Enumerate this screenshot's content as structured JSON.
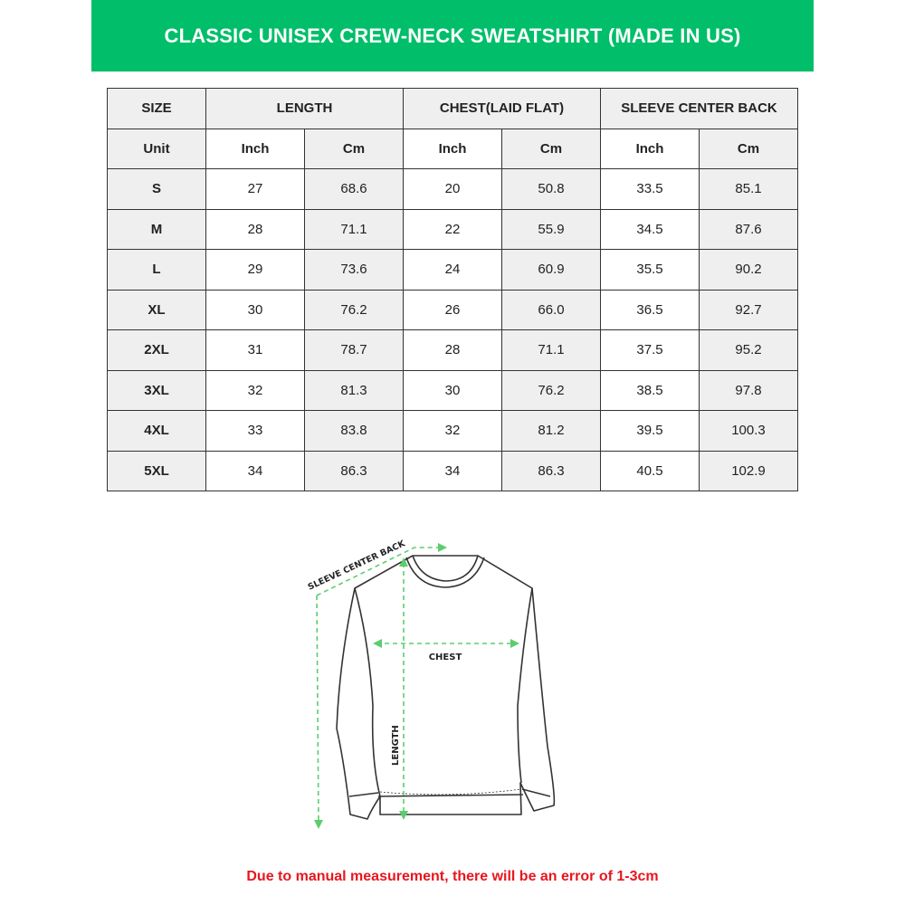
{
  "title": "CLASSIC UNISEX CREW-NECK SWEATSHIRT (MADE IN US)",
  "colors": {
    "banner": "#00be69",
    "note": "#e8161e",
    "arrows": "#5ccd6e"
  },
  "table": {
    "headers": [
      "SIZE",
      "LENGTH",
      "CHEST(LAID FLAT)",
      "SLEEVE CENTER BACK"
    ],
    "units": [
      "Unit",
      "Inch",
      "Cm",
      "Inch",
      "Cm",
      "Inch",
      "Cm"
    ],
    "rows": [
      [
        "S",
        "27",
        "68.6",
        "20",
        "50.8",
        "33.5",
        "85.1"
      ],
      [
        "M",
        "28",
        "71.1",
        "22",
        "55.9",
        "34.5",
        "87.6"
      ],
      [
        "L",
        "29",
        "73.6",
        "24",
        "60.9",
        "35.5",
        "90.2"
      ],
      [
        "XL",
        "30",
        "76.2",
        "26",
        "66.0",
        "36.5",
        "92.7"
      ],
      [
        "2XL",
        "31",
        "78.7",
        "28",
        "71.1",
        "37.5",
        "95.2"
      ],
      [
        "3XL",
        "32",
        "81.3",
        "30",
        "76.2",
        "38.5",
        "97.8"
      ],
      [
        "4XL",
        "33",
        "83.8",
        "32",
        "81.2",
        "39.5",
        "100.3"
      ],
      [
        "5XL",
        "34",
        "86.3",
        "34",
        "86.3",
        "40.5",
        "102.9"
      ]
    ]
  },
  "diagram": {
    "sleeve_label": "SLEEVE CENTER BACK",
    "chest_label": "CHEST",
    "length_label": "LENGTH"
  },
  "note": "Due to manual measurement, there will be an error of 1-3cm"
}
